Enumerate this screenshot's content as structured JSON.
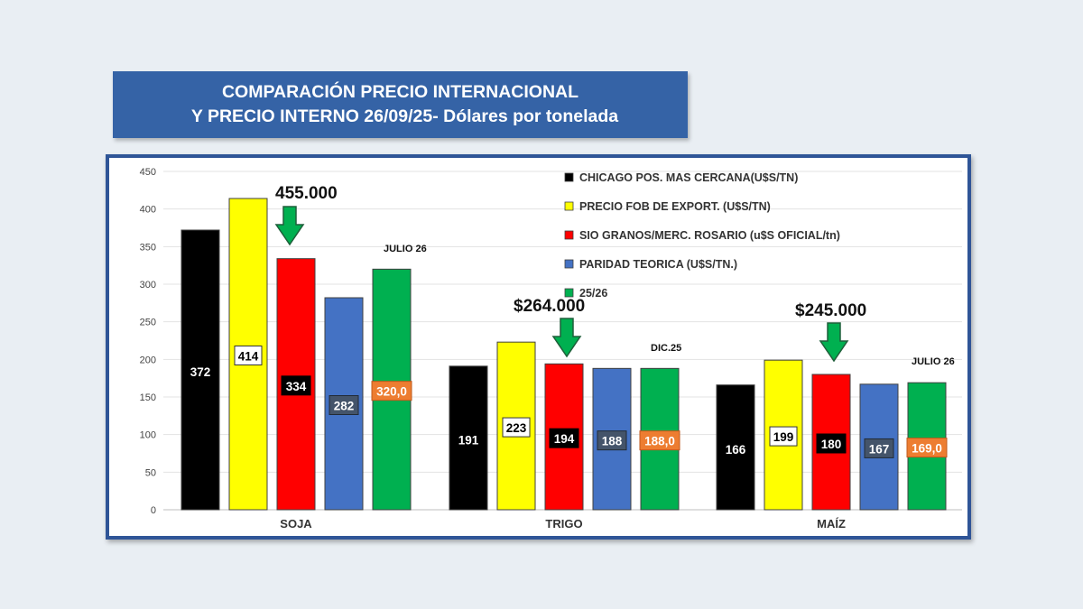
{
  "title": {
    "line1": "COMPARACIÓN PRECIO INTERNACIONAL",
    "line2": "Y PRECIO INTERNO 26/09/25- Dólares por tonelada"
  },
  "colors": {
    "chicago": "#000000",
    "fob": "#ffff00",
    "sio": "#ff0000",
    "paridad": "#4472c4",
    "futuro": "#00b050",
    "arrow": "#00b050",
    "frame": "#2f5597",
    "label_orange": "#ed7d31",
    "label_navy": "#44546a"
  },
  "chart_data": {
    "type": "bar",
    "categories": [
      "SOJA",
      "TRIGO",
      "MAÍZ"
    ],
    "ylim": [
      0,
      450
    ],
    "yticks": [
      0,
      50,
      100,
      150,
      200,
      250,
      300,
      350,
      400,
      450
    ],
    "grid": true,
    "legend_position": "top-right",
    "series": [
      {
        "key": "chicago",
        "name": "CHICAGO POS. MAS CERCANA(U$S/TN)",
        "values": [
          372,
          191,
          166
        ],
        "labels": [
          "372",
          "191",
          "166"
        ],
        "label_style": "plain-white"
      },
      {
        "key": "fob",
        "name": "PRECIO FOB DE EXPORT. (U$S/TN)",
        "values": [
          414,
          223,
          199
        ],
        "labels": [
          "414",
          "223",
          "199"
        ],
        "label_style": "white-box"
      },
      {
        "key": "sio",
        "name": "SIO GRANOS/MERC. ROSARIO  (u$S OFICIAL/tn)",
        "values": [
          334,
          194,
          180
        ],
        "labels": [
          "334",
          "194",
          "180"
        ],
        "label_style": "black-box"
      },
      {
        "key": "paridad",
        "name": "PARIDAD TEORICA (U$S/TN.)",
        "values": [
          282,
          188,
          167
        ],
        "labels": [
          "282",
          "188",
          "167"
        ],
        "label_style": "navy-box"
      },
      {
        "key": "futuro",
        "name": "25/26",
        "values": [
          320,
          188,
          169
        ],
        "labels": [
          "320,0",
          "188,0",
          "169,0"
        ],
        "label_style": "orange-box"
      }
    ],
    "annotations": [
      {
        "text": "455.000",
        "category": "SOJA"
      },
      {
        "text": "$264.000",
        "category": "TRIGO"
      },
      {
        "text": "$245.000",
        "category": "MAÍZ"
      },
      {
        "text": "JULIO   26",
        "category": "SOJA"
      },
      {
        "text": "DIC.25",
        "category": "TRIGO"
      },
      {
        "text": "JULIO  26",
        "category": "MAÍZ"
      }
    ]
  }
}
